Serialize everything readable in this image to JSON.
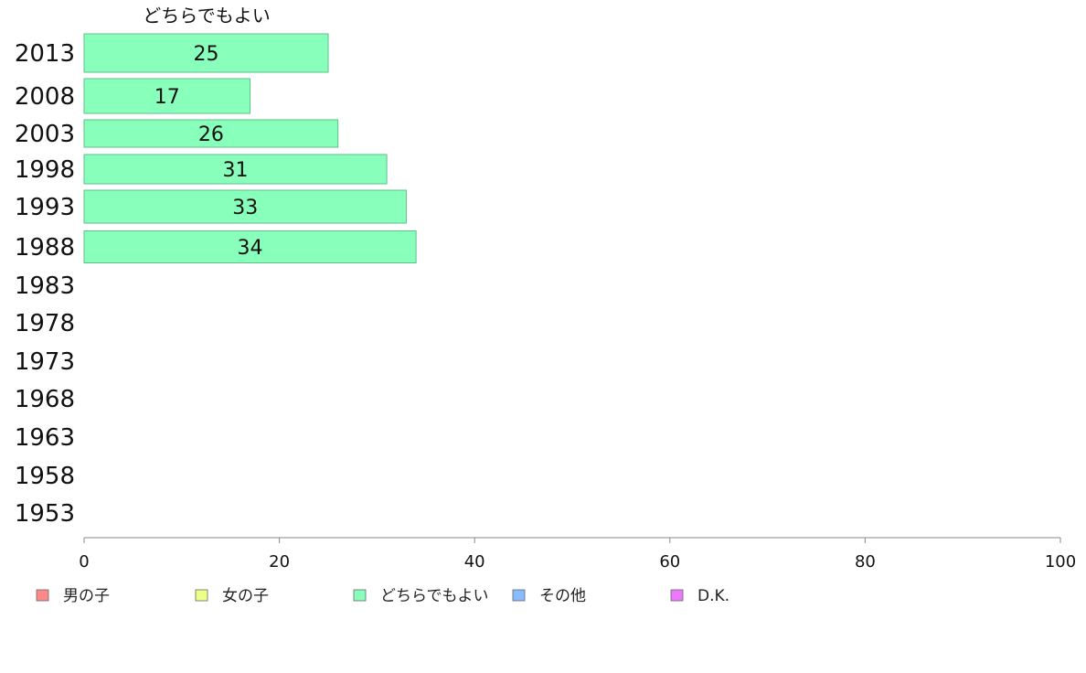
{
  "chart_data": {
    "type": "bar",
    "orientation": "horizontal",
    "series_title": "どちらでもよい",
    "categories": [
      "2013",
      "2008",
      "2003",
      "1998",
      "1993",
      "1988",
      "1983",
      "1978",
      "1973",
      "1968",
      "1963",
      "1958",
      "1953"
    ],
    "series": [
      {
        "name": "どちらでもよい",
        "color": "#88ffbb",
        "values": [
          25,
          17,
          26,
          31,
          33,
          34,
          null,
          null,
          null,
          null,
          null,
          null,
          null
        ]
      }
    ],
    "xlim": [
      0,
      100
    ],
    "xticks": [
      "0",
      "20",
      "40",
      "60",
      "80",
      "100"
    ],
    "legend": [
      {
        "label": "男の子",
        "color": "#ff8888"
      },
      {
        "label": "女の子",
        "color": "#eeff88"
      },
      {
        "label": "どちらでもよい",
        "color": "#88ffbb"
      },
      {
        "label": "その他",
        "color": "#88bbff"
      },
      {
        "label": "D.K.",
        "color": "#ee77ff"
      }
    ],
    "legend_position": "bottom",
    "grid": false
  }
}
